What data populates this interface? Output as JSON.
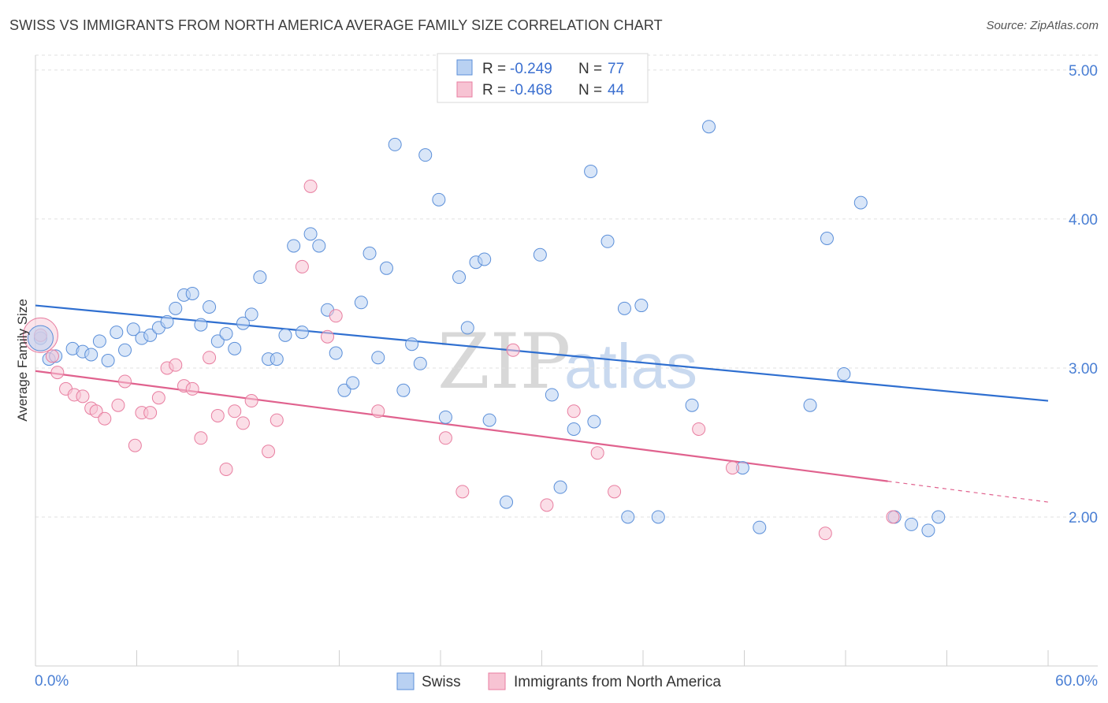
{
  "title": "SWISS VS IMMIGRANTS FROM NORTH AMERICA AVERAGE FAMILY SIZE CORRELATION CHART",
  "source": "Source: ZipAtlas.com",
  "watermark": {
    "zip": "ZIP",
    "atlas": "atlas"
  },
  "chart_data": {
    "type": "scatter",
    "title": "SWISS VS IMMIGRANTS FROM NORTH AMERICA AVERAGE FAMILY SIZE CORRELATION CHART",
    "xlabel": "",
    "ylabel": "Average Family Size",
    "xlim": [
      0,
      60
    ],
    "ylim": [
      1.0,
      5.1
    ],
    "x_tick_labels": [
      "0.0%",
      "60.0%"
    ],
    "y_ticks": [
      2.0,
      3.0,
      4.0,
      5.0
    ],
    "y_tick_labels": [
      "2.00",
      "3.00",
      "4.00",
      "5.00"
    ],
    "grid": true,
    "legend_position": "top-center",
    "legend": [
      {
        "r_label": "R =",
        "r_value": "-0.249",
        "n_label": "N =",
        "n_value": "77"
      },
      {
        "r_label": "R =",
        "r_value": "-0.468",
        "n_label": "N =",
        "n_value": "44"
      }
    ],
    "series": [
      {
        "name": "Swiss",
        "color": "#5b8fd9",
        "fill": "#b9d1f2",
        "trend": {
          "x0": 0,
          "y0": 3.42,
          "x1": 60,
          "y1": 2.78
        },
        "points": [
          [
            0.3,
            3.2
          ],
          [
            0.8,
            3.06
          ],
          [
            1.2,
            3.08
          ],
          [
            2.2,
            3.13
          ],
          [
            2.8,
            3.11
          ],
          [
            3.3,
            3.09
          ],
          [
            3.8,
            3.18
          ],
          [
            4.3,
            3.05
          ],
          [
            4.8,
            3.24
          ],
          [
            5.3,
            3.12
          ],
          [
            5.8,
            3.26
          ],
          [
            6.3,
            3.2
          ],
          [
            6.8,
            3.22
          ],
          [
            7.3,
            3.27
          ],
          [
            7.8,
            3.31
          ],
          [
            8.3,
            3.4
          ],
          [
            8.8,
            3.49
          ],
          [
            9.3,
            3.5
          ],
          [
            9.8,
            3.29
          ],
          [
            10.3,
            3.41
          ],
          [
            10.8,
            3.18
          ],
          [
            11.3,
            3.23
          ],
          [
            11.8,
            3.13
          ],
          [
            12.3,
            3.3
          ],
          [
            12.8,
            3.36
          ],
          [
            13.3,
            3.61
          ],
          [
            13.8,
            3.06
          ],
          [
            14.3,
            3.06
          ],
          [
            14.8,
            3.22
          ],
          [
            15.3,
            3.82
          ],
          [
            15.8,
            3.24
          ],
          [
            16.3,
            3.9
          ],
          [
            16.8,
            3.82
          ],
          [
            17.3,
            3.39
          ],
          [
            17.8,
            3.1
          ],
          [
            18.3,
            2.85
          ],
          [
            18.8,
            2.9
          ],
          [
            19.3,
            3.44
          ],
          [
            19.8,
            3.77
          ],
          [
            20.3,
            3.07
          ],
          [
            20.8,
            3.67
          ],
          [
            21.3,
            4.5
          ],
          [
            21.8,
            2.85
          ],
          [
            22.3,
            3.16
          ],
          [
            22.8,
            3.03
          ],
          [
            23.1,
            4.43
          ],
          [
            23.9,
            4.13
          ],
          [
            24.3,
            2.67
          ],
          [
            25.1,
            3.61
          ],
          [
            25.6,
            3.27
          ],
          [
            26.1,
            3.71
          ],
          [
            26.6,
            3.73
          ],
          [
            26.9,
            2.65
          ],
          [
            27.9,
            2.1
          ],
          [
            29.9,
            3.76
          ],
          [
            30.6,
            2.82
          ],
          [
            31.1,
            2.2
          ],
          [
            31.9,
            2.59
          ],
          [
            32.9,
            4.32
          ],
          [
            33.1,
            2.64
          ],
          [
            33.9,
            3.85
          ],
          [
            34.9,
            3.4
          ],
          [
            35.1,
            2.0
          ],
          [
            35.9,
            3.42
          ],
          [
            36.9,
            2.0
          ],
          [
            38.9,
            2.75
          ],
          [
            39.9,
            4.62
          ],
          [
            41.9,
            2.33
          ],
          [
            42.9,
            1.93
          ],
          [
            45.9,
            2.75
          ],
          [
            46.9,
            3.87
          ],
          [
            47.9,
            2.96
          ],
          [
            48.9,
            4.11
          ],
          [
            50.9,
            2.0
          ],
          [
            51.9,
            1.95
          ],
          [
            52.9,
            1.91
          ],
          [
            53.5,
            2.0
          ]
        ]
      },
      {
        "name": "Immigrants from North America",
        "color": "#e87ea0",
        "fill": "#f7c3d3",
        "trend": {
          "x0": 0,
          "y0": 2.98,
          "x1": 50.5,
          "y1": 2.24,
          "dash_x1": 60,
          "dash_y1": 2.1
        },
        "points": [
          [
            0.3,
            3.22
          ],
          [
            1.0,
            3.08
          ],
          [
            1.3,
            2.97
          ],
          [
            1.8,
            2.86
          ],
          [
            2.3,
            2.82
          ],
          [
            2.8,
            2.81
          ],
          [
            3.3,
            2.73
          ],
          [
            3.6,
            2.71
          ],
          [
            4.1,
            2.66
          ],
          [
            4.9,
            2.75
          ],
          [
            5.3,
            2.91
          ],
          [
            5.9,
            2.48
          ],
          [
            6.3,
            2.7
          ],
          [
            6.8,
            2.7
          ],
          [
            7.3,
            2.8
          ],
          [
            7.8,
            3.0
          ],
          [
            8.3,
            3.02
          ],
          [
            8.8,
            2.88
          ],
          [
            9.3,
            2.86
          ],
          [
            9.8,
            2.53
          ],
          [
            10.3,
            3.07
          ],
          [
            10.8,
            2.68
          ],
          [
            11.3,
            2.32
          ],
          [
            11.8,
            2.71
          ],
          [
            12.3,
            2.63
          ],
          [
            12.8,
            2.78
          ],
          [
            13.8,
            2.44
          ],
          [
            14.3,
            2.65
          ],
          [
            15.8,
            3.68
          ],
          [
            16.3,
            4.22
          ],
          [
            17.3,
            3.21
          ],
          [
            17.8,
            3.35
          ],
          [
            20.3,
            2.71
          ],
          [
            24.3,
            2.53
          ],
          [
            25.3,
            2.17
          ],
          [
            28.3,
            3.12
          ],
          [
            30.3,
            2.08
          ],
          [
            31.9,
            2.71
          ],
          [
            33.3,
            2.43
          ],
          [
            34.3,
            2.17
          ],
          [
            39.3,
            2.59
          ],
          [
            41.3,
            2.33
          ],
          [
            46.8,
            1.89
          ],
          [
            50.8,
            2.0
          ]
        ]
      }
    ]
  }
}
